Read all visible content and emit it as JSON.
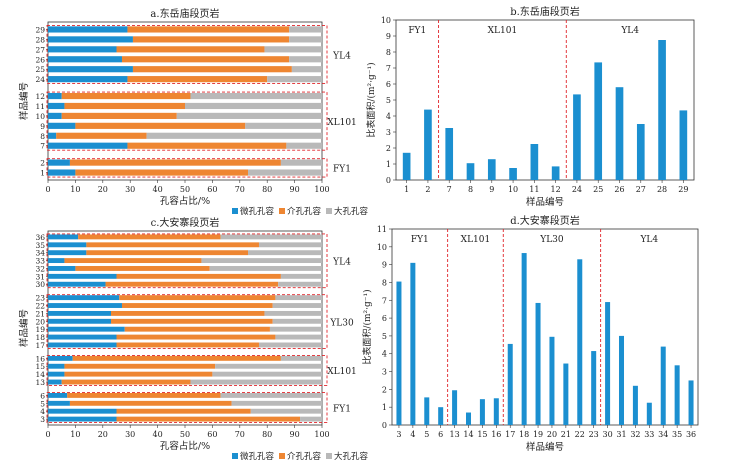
{
  "colors": {
    "micro": "#1b8fd0",
    "meso": "#ee8632",
    "macro": "#b9b9b9",
    "bar": "#1b8fd0",
    "divider": "#e0242a"
  },
  "legend": {
    "micro": "微孔孔容",
    "meso": "介孔孔容",
    "macro": "大孔孔容"
  },
  "chart_data": [
    {
      "panel": "a",
      "type": "bar",
      "orientation": "horizontal-stacked",
      "title": "a.东岳庙段页岩",
      "xlabel": "孔容占比/%",
      "ylabel": "样品编号",
      "xlim": [
        0,
        100
      ],
      "xticks": [
        0,
        10,
        20,
        30,
        40,
        50,
        60,
        70,
        80,
        90,
        100
      ],
      "groups": [
        {
          "name": "FY1",
          "samples": [
            {
              "id": "1",
              "micro": 10,
              "meso": 63,
              "macro": 27
            },
            {
              "id": "2",
              "micro": 8,
              "meso": 77,
              "macro": 15
            }
          ]
        },
        {
          "name": "XL101",
          "samples": [
            {
              "id": "7",
              "micro": 29,
              "meso": 58,
              "macro": 13
            },
            {
              "id": "8",
              "micro": 3,
              "meso": 33,
              "macro": 64
            },
            {
              "id": "9",
              "micro": 10,
              "meso": 62,
              "macro": 28
            },
            {
              "id": "10",
              "micro": 5,
              "meso": 42,
              "macro": 53
            },
            {
              "id": "11",
              "micro": 6,
              "meso": 44,
              "macro": 50
            },
            {
              "id": "12",
              "micro": 5,
              "meso": 47,
              "macro": 48
            }
          ]
        },
        {
          "name": "YL4",
          "samples": [
            {
              "id": "24",
              "micro": 29,
              "meso": 51,
              "macro": 20
            },
            {
              "id": "25",
              "micro": 31,
              "meso": 58,
              "macro": 11
            },
            {
              "id": "26",
              "micro": 27,
              "meso": 61,
              "macro": 12
            },
            {
              "id": "27",
              "micro": 25,
              "meso": 54,
              "macro": 21
            },
            {
              "id": "28",
              "micro": 31,
              "meso": 57,
              "macro": 12
            },
            {
              "id": "29",
              "micro": 29,
              "meso": 59,
              "macro": 12
            }
          ]
        }
      ]
    },
    {
      "panel": "b",
      "type": "bar",
      "title": "b.东岳庙段页岩",
      "xlabel": "样品编号",
      "ylabel": "比表面积/(m²·g⁻¹)",
      "ylim": [
        0,
        10
      ],
      "yticks": [
        0,
        1,
        2,
        3,
        4,
        5,
        6,
        7,
        8,
        9,
        10
      ],
      "groups": [
        {
          "name": "FY1",
          "categories": [
            "1",
            "2"
          ],
          "values": [
            1.7,
            4.4
          ]
        },
        {
          "name": "XL101",
          "categories": [
            "7",
            "8",
            "9",
            "10",
            "11",
            "12"
          ],
          "values": [
            3.25,
            1.05,
            1.3,
            0.75,
            2.25,
            0.85
          ]
        },
        {
          "name": "YL4",
          "categories": [
            "24",
            "25",
            "26",
            "27",
            "28",
            "29"
          ],
          "values": [
            5.35,
            7.35,
            5.8,
            3.5,
            8.75,
            4.35
          ]
        }
      ]
    },
    {
      "panel": "c",
      "type": "bar",
      "orientation": "horizontal-stacked",
      "title": "c.大安寨段页岩",
      "xlabel": "孔容占比/%",
      "ylabel": "样品编号",
      "xlim": [
        0,
        100
      ],
      "xticks": [
        0,
        10,
        20,
        30,
        40,
        50,
        60,
        70,
        80,
        90,
        100
      ],
      "groups": [
        {
          "name": "FY1",
          "samples": [
            {
              "id": "3",
              "micro": 25,
              "meso": 67,
              "macro": 8
            },
            {
              "id": "4",
              "micro": 25,
              "meso": 49,
              "macro": 26
            },
            {
              "id": "5",
              "micro": 8,
              "meso": 59,
              "macro": 33
            },
            {
              "id": "6",
              "micro": 7,
              "meso": 56,
              "macro": 37
            }
          ]
        },
        {
          "name": "XL101",
          "samples": [
            {
              "id": "13",
              "micro": 5,
              "meso": 47,
              "macro": 48
            },
            {
              "id": "14",
              "micro": 6,
              "meso": 54,
              "macro": 40
            },
            {
              "id": "15",
              "micro": 6,
              "meso": 55,
              "macro": 39
            },
            {
              "id": "16",
              "micro": 9,
              "meso": 76,
              "macro": 15
            }
          ]
        },
        {
          "name": "YL30",
          "samples": [
            {
              "id": "17",
              "micro": 25,
              "meso": 52,
              "macro": 23
            },
            {
              "id": "18",
              "micro": 25,
              "meso": 58,
              "macro": 17
            },
            {
              "id": "19",
              "micro": 28,
              "meso": 53,
              "macro": 19
            },
            {
              "id": "20",
              "micro": 23,
              "meso": 59,
              "macro": 18
            },
            {
              "id": "21",
              "micro": 23,
              "meso": 56,
              "macro": 21
            },
            {
              "id": "22",
              "micro": 27,
              "meso": 55,
              "macro": 18
            },
            {
              "id": "23",
              "micro": 26,
              "meso": 57,
              "macro": 17
            }
          ]
        },
        {
          "name": "YL4",
          "samples": [
            {
              "id": "30",
              "micro": 21,
              "meso": 63,
              "macro": 16
            },
            {
              "id": "31",
              "micro": 25,
              "meso": 60,
              "macro": 15
            },
            {
              "id": "32",
              "micro": 10,
              "meso": 49,
              "macro": 41
            },
            {
              "id": "33",
              "micro": 6,
              "meso": 50,
              "macro": 44
            },
            {
              "id": "34",
              "micro": 14,
              "meso": 59,
              "macro": 27
            },
            {
              "id": "35",
              "micro": 14,
              "meso": 63,
              "macro": 23
            },
            {
              "id": "36",
              "micro": 11,
              "meso": 52,
              "macro": 37
            }
          ]
        }
      ]
    },
    {
      "panel": "d",
      "type": "bar",
      "title": "d.大安寨段页岩",
      "xlabel": "样品编号",
      "ylabel": "比表面积/(m²·g⁻¹)",
      "ylim": [
        0,
        11
      ],
      "yticks": [
        0,
        1,
        2,
        3,
        4,
        5,
        6,
        7,
        8,
        9,
        10,
        11
      ],
      "groups": [
        {
          "name": "FY1",
          "categories": [
            "3",
            "4",
            "5",
            "6"
          ],
          "values": [
            8.05,
            9.1,
            1.55,
            1.0
          ]
        },
        {
          "name": "XL101",
          "categories": [
            "13",
            "14",
            "15",
            "16"
          ],
          "values": [
            1.95,
            0.7,
            1.45,
            1.5
          ]
        },
        {
          "name": "YL30",
          "categories": [
            "17",
            "18",
            "19",
            "20",
            "21",
            "22",
            "23"
          ],
          "values": [
            4.55,
            9.65,
            6.85,
            4.95,
            3.45,
            9.3,
            4.15
          ]
        },
        {
          "name": "YL4",
          "categories": [
            "30",
            "31",
            "32",
            "33",
            "34",
            "35",
            "36"
          ],
          "values": [
            6.9,
            5.0,
            2.2,
            1.25,
            4.4,
            3.35,
            2.5
          ]
        }
      ]
    }
  ]
}
